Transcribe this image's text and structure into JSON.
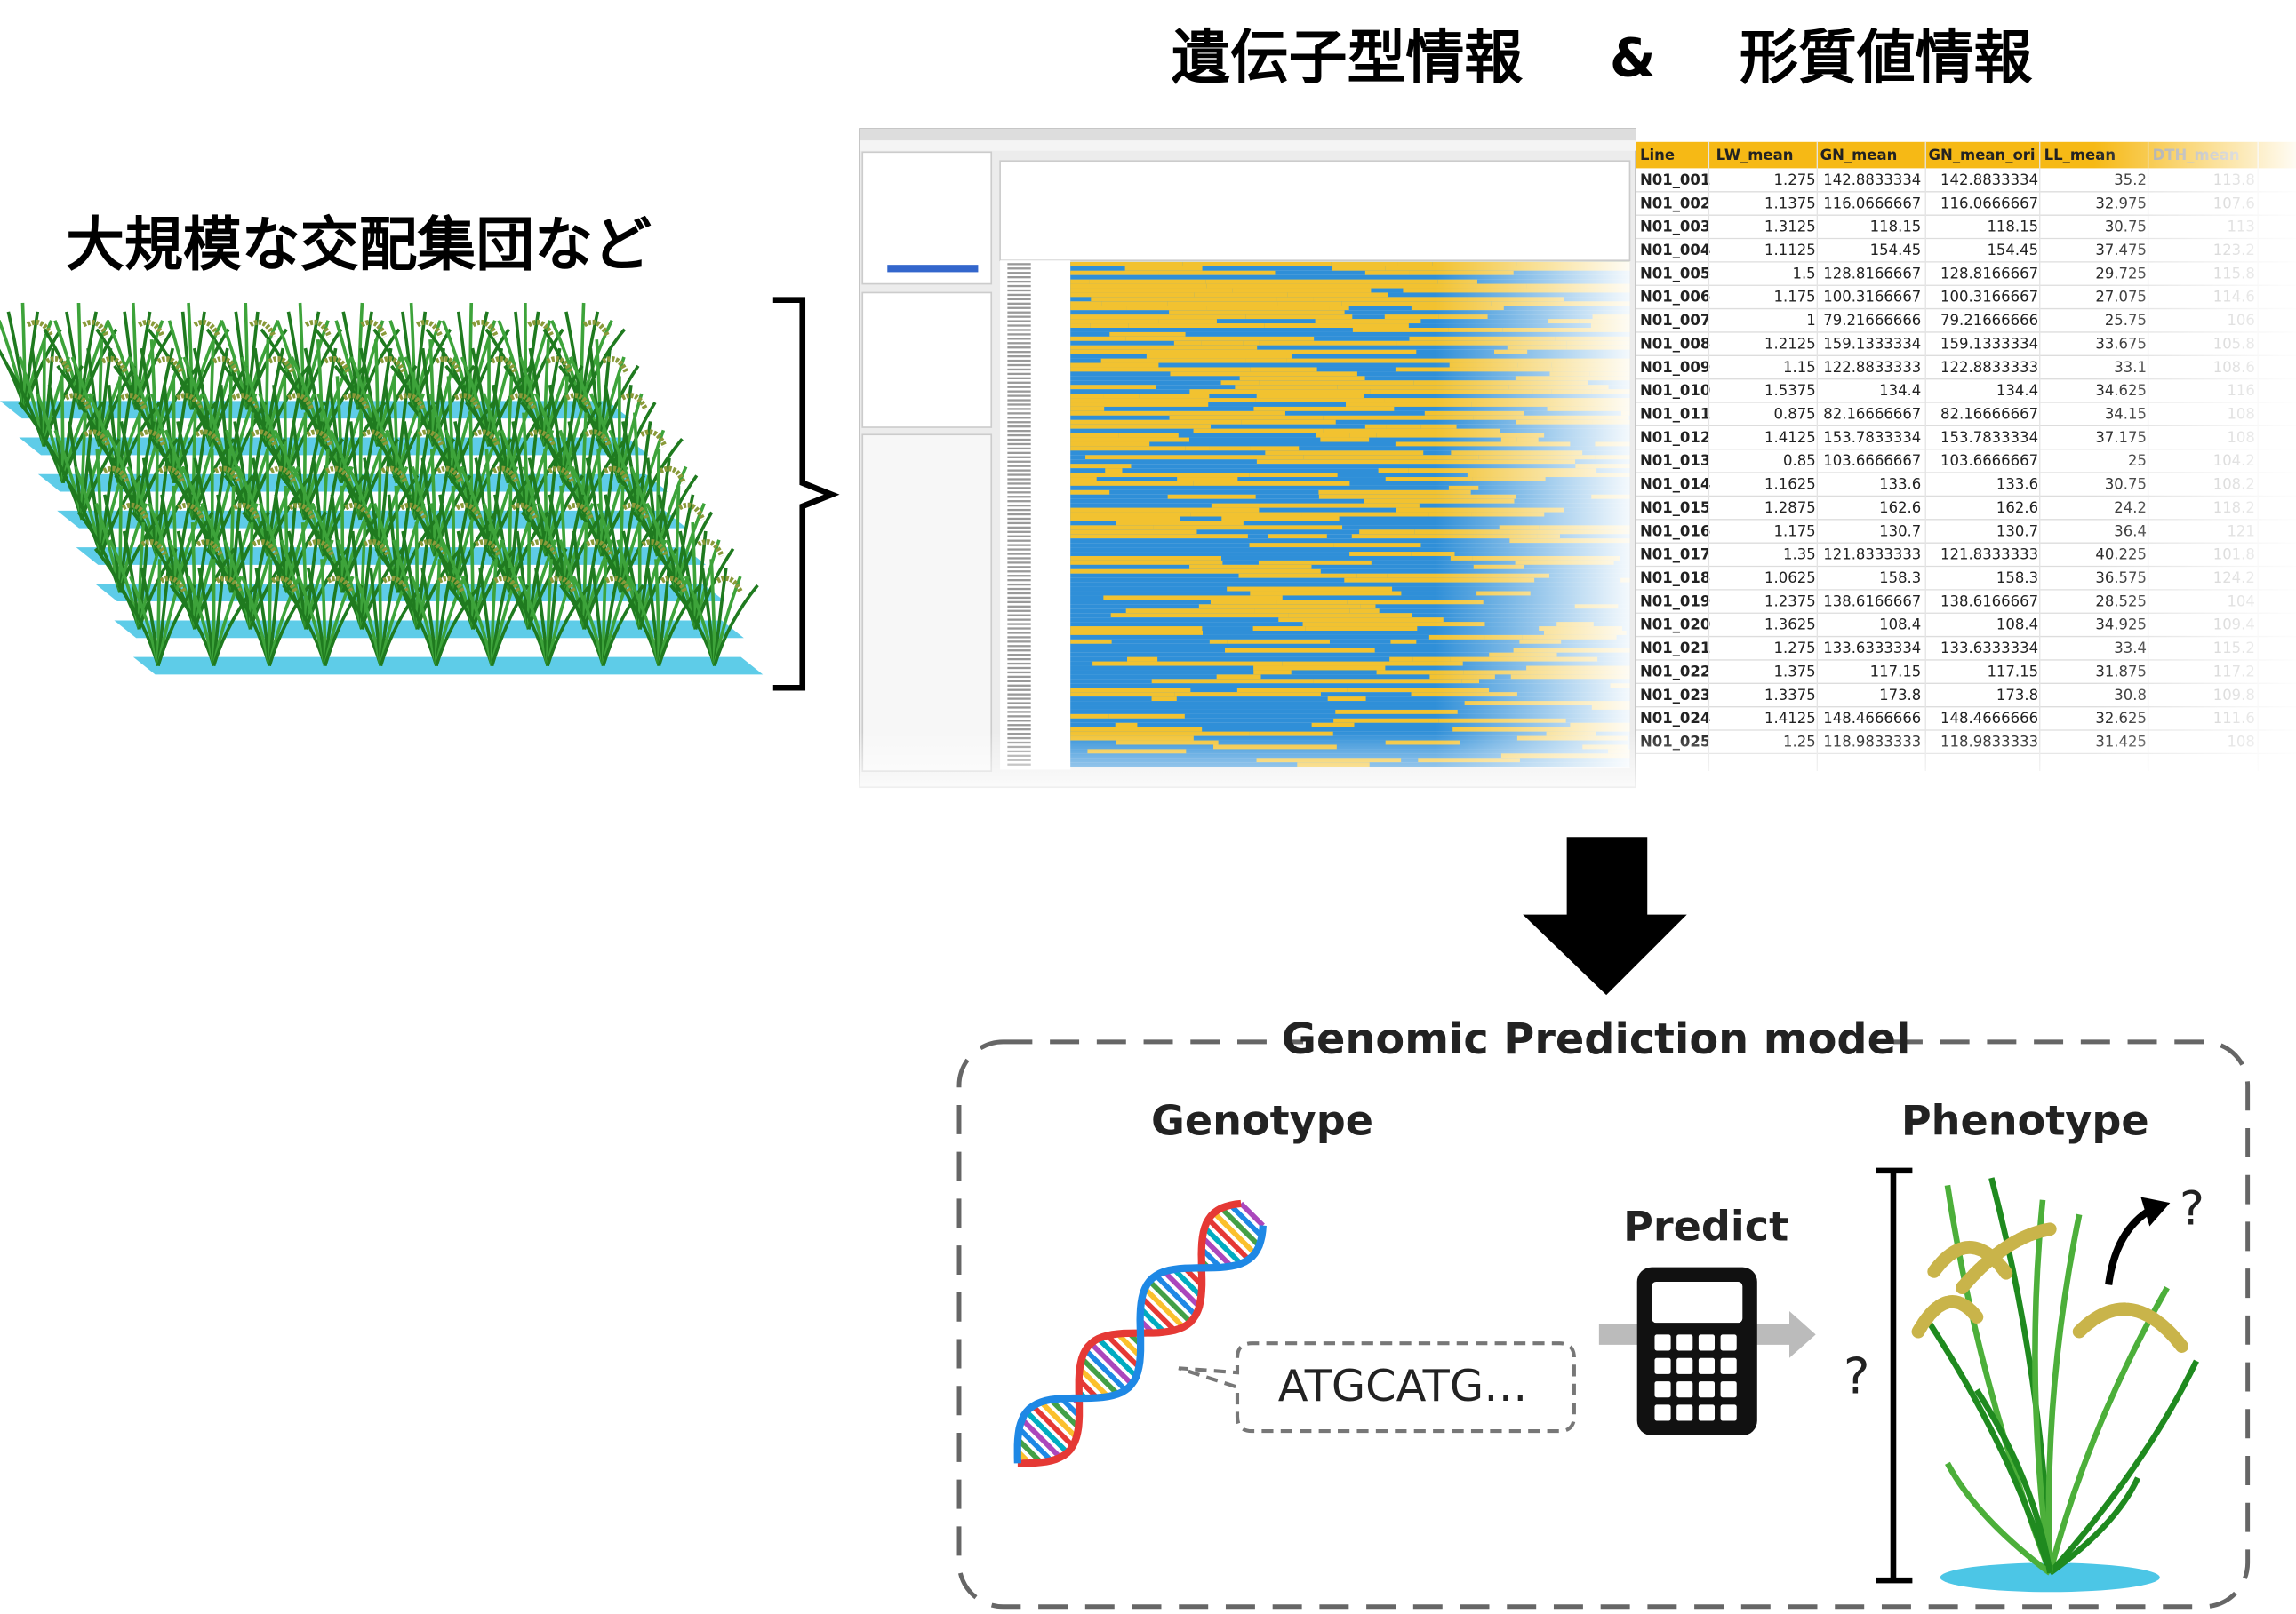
{
  "header": {
    "title_left": "遺伝子型情報",
    "title_amp": "&",
    "title_right": "形質値情報"
  },
  "population_label": "大規模な交配集団など",
  "table": {
    "columns": [
      "Line",
      "LW_mean",
      "GN_mean",
      "GN_mean_ori",
      "LL_mean",
      "DTH_mean"
    ],
    "rows": [
      [
        "N01_001",
        "1.275",
        "142.8833334",
        "142.8833334",
        "35.2",
        "113.8"
      ],
      [
        "N01_002",
        "1.1375",
        "116.0666667",
        "116.0666667",
        "32.975",
        "107.6"
      ],
      [
        "N01_003",
        "1.3125",
        "118.15",
        "118.15",
        "30.75",
        "113"
      ],
      [
        "N01_004",
        "1.1125",
        "154.45",
        "154.45",
        "37.475",
        "123.2"
      ],
      [
        "N01_005",
        "1.5",
        "128.8166667",
        "128.8166667",
        "29.725",
        "115.8"
      ],
      [
        "N01_006",
        "1.175",
        "100.3166667",
        "100.3166667",
        "27.075",
        "114.6"
      ],
      [
        "N01_007",
        "1",
        "79.21666666",
        "79.21666666",
        "25.75",
        "106"
      ],
      [
        "N01_008",
        "1.2125",
        "159.1333334",
        "159.1333334",
        "33.675",
        "105.8"
      ],
      [
        "N01_009",
        "1.15",
        "122.8833333",
        "122.8833333",
        "33.1",
        "108.6"
      ],
      [
        "N01_010",
        "1.5375",
        "134.4",
        "134.4",
        "34.625",
        "116"
      ],
      [
        "N01_011",
        "0.875",
        "82.16666667",
        "82.16666667",
        "34.15",
        "108"
      ],
      [
        "N01_012",
        "1.4125",
        "153.7833334",
        "153.7833334",
        "37.175",
        "108"
      ],
      [
        "N01_013",
        "0.85",
        "103.6666667",
        "103.6666667",
        "25",
        "104.2"
      ],
      [
        "N01_014",
        "1.1625",
        "133.6",
        "133.6",
        "30.75",
        "108.2"
      ],
      [
        "N01_015",
        "1.2875",
        "162.6",
        "162.6",
        "24.2",
        "118.2"
      ],
      [
        "N01_016",
        "1.175",
        "130.7",
        "130.7",
        "36.4",
        "121"
      ],
      [
        "N01_017",
        "1.35",
        "121.8333333",
        "121.8333333",
        "40.225",
        "101.8"
      ],
      [
        "N01_018",
        "1.0625",
        "158.3",
        "158.3",
        "36.575",
        "124.2"
      ],
      [
        "N01_019",
        "1.2375",
        "138.6166667",
        "138.6166667",
        "28.525",
        "104"
      ],
      [
        "N01_020",
        "1.3625",
        "108.4",
        "108.4",
        "34.925",
        "109.4"
      ],
      [
        "N01_021",
        "1.275",
        "133.6333334",
        "133.6333334",
        "33.4",
        "115.2"
      ],
      [
        "N01_022",
        "1.375",
        "117.15",
        "117.15",
        "31.875",
        "117.2"
      ],
      [
        "N01_023",
        "1.3375",
        "173.8",
        "173.8",
        "30.8",
        "109.8"
      ],
      [
        "N01_024",
        "1.4125",
        "148.4666666",
        "148.4666666",
        "32.625",
        "111.6"
      ],
      [
        "N01_025",
        "1.25",
        "118.9833333",
        "118.9833333",
        "31.425",
        "108"
      ]
    ]
  },
  "model": {
    "title": "Genomic Prediction model",
    "genotype": "Genotype",
    "phenotype": "Phenotype",
    "predict": "Predict",
    "sequence": "ATGCATG…",
    "unknown_value": "?",
    "unknown_trait": "?"
  }
}
